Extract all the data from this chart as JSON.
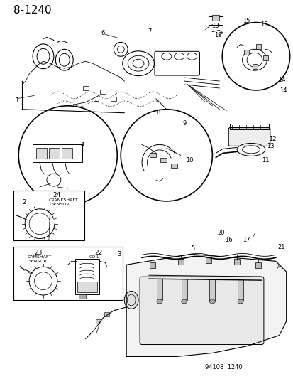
{
  "title": "8-1240",
  "background_color": "#ffffff",
  "figure_width": 4.14,
  "figure_height": 5.33,
  "dpi": 100,
  "catalog_number": "94108  1240",
  "parts": {
    "main_engine_labels": [
      "1",
      "6",
      "7",
      "18",
      "19",
      "14",
      "15"
    ],
    "circle1_labels": [
      "2",
      "4"
    ],
    "circle2_labels": [
      "8",
      "9",
      "10"
    ],
    "side_part_labels": [
      "11",
      "12",
      "13"
    ],
    "box1_labels": [
      "24"
    ],
    "box1_text": [
      "CRANKSHAFT",
      "SENSOR"
    ],
    "box2_labels": [
      "22",
      "23"
    ],
    "box2_text1": [
      "CAMSHAFT",
      "SENSOR"
    ],
    "box2_text2": [
      "COIL"
    ],
    "bottom_labels": [
      "3",
      "5",
      "16",
      "17",
      "20",
      "21",
      "4"
    ]
  },
  "line_color": "#000000",
  "text_color": "#000000",
  "circle_edge_color": "#000000",
  "box_edge_color": "#000000"
}
